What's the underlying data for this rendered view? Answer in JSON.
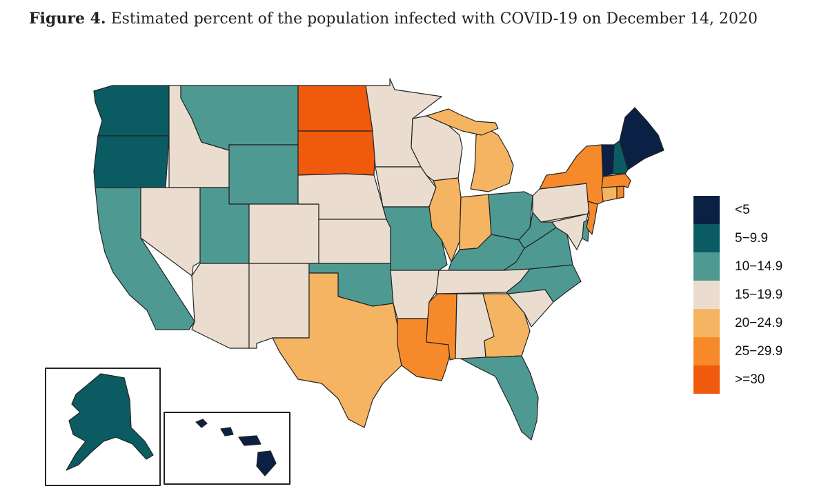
{
  "figure": {
    "label": "Figure 4.",
    "title": "Estimated percent of the population infected with COVID-19 on December 14, 2020"
  },
  "legend": [
    {
      "label": "<5",
      "color": "#0b2045"
    },
    {
      "label": "5−9.9",
      "color": "#0b5c62"
    },
    {
      "label": "10−14.9",
      "color": "#4e9a92"
    },
    {
      "label": "15−19.9",
      "color": "#eaddd0"
    },
    {
      "label": "20−24.9",
      "color": "#f5b461"
    },
    {
      "label": "25−29.9",
      "color": "#f68a2a"
    },
    {
      "label": ">=30",
      "color": "#f05a0d"
    }
  ],
  "states": {
    "WA": 1,
    "OR": 1,
    "CA": 2,
    "ID": 3,
    "NV": 3,
    "MT": 2,
    "WY": 2,
    "UT": 2,
    "AZ": 3,
    "CO": 3,
    "NM": 3,
    "ND": 6,
    "SD": 6,
    "NE": 3,
    "KS": 3,
    "OK": 2,
    "TX": 4,
    "MN": 3,
    "IA": 3,
    "MO": 2,
    "AR": 3,
    "LA": 5,
    "WI": 3,
    "IL": 4,
    "MI": 4,
    "IN": 4,
    "OH": 2,
    "KY": 2,
    "TN": 3,
    "MS": 5,
    "AL": 3,
    "GA": 4,
    "FL": 2,
    "SC": 3,
    "NC": 2,
    "VA": 2,
    "WV": 2,
    "PA": 3,
    "NY": 5,
    "VT": 0,
    "NH": 1,
    "ME": 0,
    "MA": 5,
    "CT": 4,
    "RI": 5,
    "NJ": 5,
    "DE": 2,
    "MD": 3,
    "AK": 1,
    "HI": 0
  }
}
